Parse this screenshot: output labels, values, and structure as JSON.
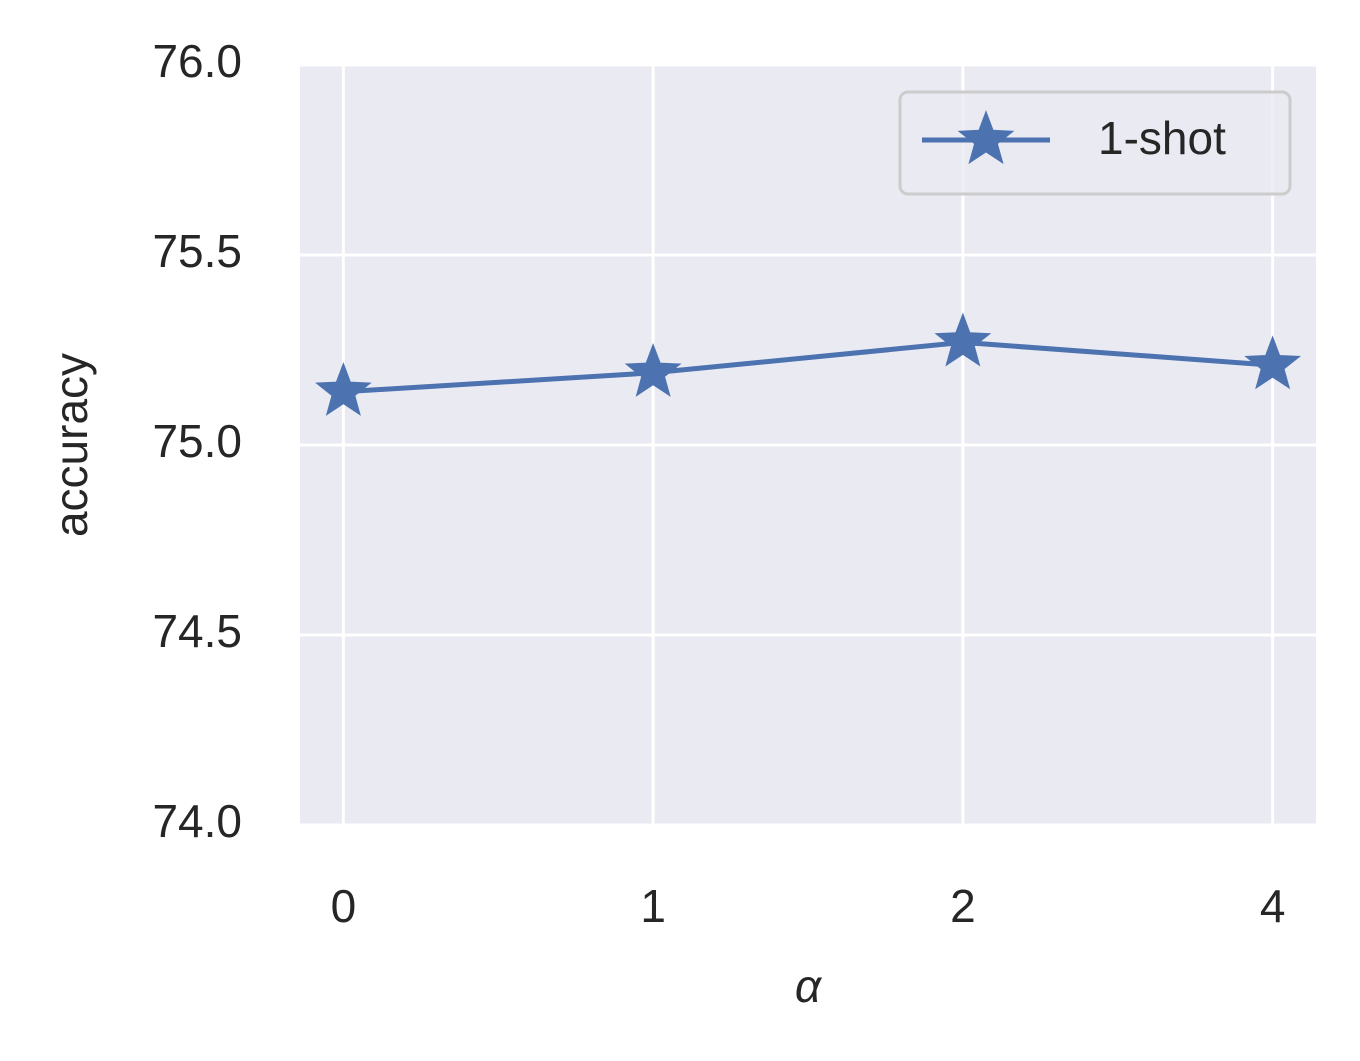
{
  "chart_data": {
    "type": "line",
    "xlabel": "α",
    "ylabel": "accuracy",
    "categories": [
      "0",
      "1",
      "2",
      "4"
    ],
    "series": [
      {
        "name": "1-shot",
        "color": "#4c72b0",
        "values": [
          75.14,
          75.19,
          75.27,
          75.21
        ]
      }
    ],
    "ylim": [
      74,
      76
    ],
    "yticks": [
      {
        "value": 74,
        "label": "74.0"
      },
      74.5,
      {
        "value": 75,
        "label": "75.0"
      },
      75.5,
      {
        "value": 76,
        "label": "76.0"
      }
    ],
    "grid": true,
    "legend": "upper right"
  }
}
